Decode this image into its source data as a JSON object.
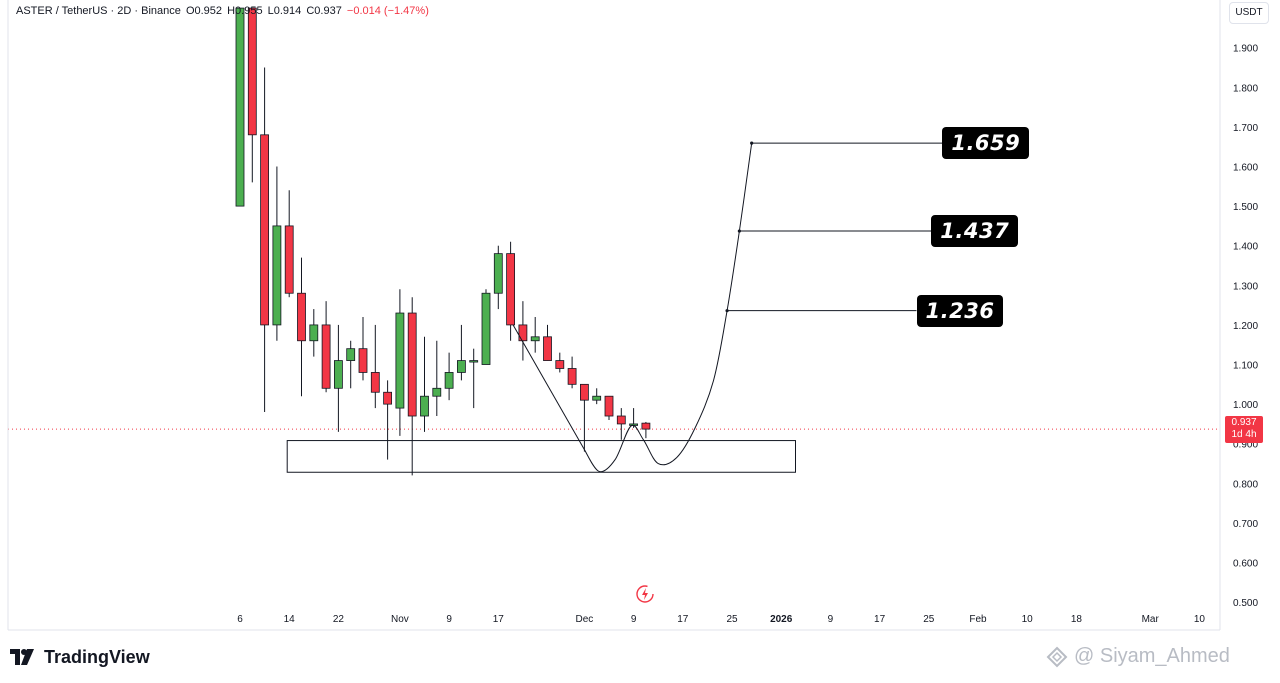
{
  "legend": {
    "symbol": "ASTER / TetherUS · 2D · Binance",
    "open": "O0.952",
    "high": "H0.955",
    "low": "L0.914",
    "close": "C0.937",
    "change": "−0.014 (−1.47%)"
  },
  "currency": "USDT",
  "last_price": {
    "value": "0.937",
    "countdown": "1d 4h"
  },
  "brand": {
    "name": "TradingView"
  },
  "watermark": "@ Siyam_Ahmed",
  "colors": {
    "up": "#4caf50",
    "down": "#f23645",
    "text": "#131722",
    "grid_dot": "#f23645"
  },
  "chart_data": {
    "type": "candlestick",
    "y_ticks": [
      "1.900",
      "1.800",
      "1.700",
      "1.600",
      "1.500",
      "1.400",
      "1.300",
      "1.200",
      "1.100",
      "1.000",
      "0.900",
      "0.800",
      "0.700",
      "0.600",
      "0.500"
    ],
    "ylim": [
      0.46,
      1.98
    ],
    "x_ticks": [
      {
        "label": "6",
        "i": 0
      },
      {
        "label": "14",
        "i": 4
      },
      {
        "label": "22",
        "i": 8
      },
      {
        "label": "Nov",
        "i": 13
      },
      {
        "label": "9",
        "i": 17
      },
      {
        "label": "17",
        "i": 21
      },
      {
        "label": "Dec",
        "i": 28
      },
      {
        "label": "9",
        "i": 32
      },
      {
        "label": "17",
        "i": 36
      },
      {
        "label": "25",
        "i": 40
      },
      {
        "label": "2026",
        "i": 44,
        "bold": true
      },
      {
        "label": "9",
        "i": 48
      },
      {
        "label": "17",
        "i": 52
      },
      {
        "label": "25",
        "i": 56
      },
      {
        "label": "Feb",
        "i": 60
      },
      {
        "label": "10",
        "i": 64
      },
      {
        "label": "18",
        "i": 68
      },
      {
        "label": "Mar",
        "i": 74
      },
      {
        "label": "10",
        "i": 78
      }
    ],
    "candles": [
      {
        "o": 1.5,
        "h": 2.0,
        "l": 1.5,
        "c": 2.0
      },
      {
        "o": 2.0,
        "h": 2.0,
        "l": 1.56,
        "c": 1.68
      },
      {
        "o": 1.68,
        "h": 1.85,
        "l": 0.98,
        "c": 1.2
      },
      {
        "o": 1.2,
        "h": 1.6,
        "l": 1.16,
        "c": 1.45
      },
      {
        "o": 1.45,
        "h": 1.54,
        "l": 1.27,
        "c": 1.28
      },
      {
        "o": 1.28,
        "h": 1.37,
        "l": 1.02,
        "c": 1.16
      },
      {
        "o": 1.16,
        "h": 1.24,
        "l": 1.12,
        "c": 1.2
      },
      {
        "o": 1.2,
        "h": 1.26,
        "l": 1.03,
        "c": 1.04
      },
      {
        "o": 1.04,
        "h": 1.2,
        "l": 0.93,
        "c": 1.11
      },
      {
        "o": 1.11,
        "h": 1.16,
        "l": 1.04,
        "c": 1.14
      },
      {
        "o": 1.14,
        "h": 1.22,
        "l": 1.06,
        "c": 1.08
      },
      {
        "o": 1.08,
        "h": 1.2,
        "l": 0.99,
        "c": 1.03
      },
      {
        "o": 1.03,
        "h": 1.06,
        "l": 0.86,
        "c": 1.0
      },
      {
        "o": 0.99,
        "h": 1.29,
        "l": 0.92,
        "c": 1.23
      },
      {
        "o": 1.23,
        "h": 1.27,
        "l": 0.82,
        "c": 0.97
      },
      {
        "o": 0.97,
        "h": 1.17,
        "l": 0.93,
        "c": 1.02
      },
      {
        "o": 1.02,
        "h": 1.16,
        "l": 0.97,
        "c": 1.04
      },
      {
        "o": 1.04,
        "h": 1.13,
        "l": 1.01,
        "c": 1.08
      },
      {
        "o": 1.08,
        "h": 1.2,
        "l": 1.06,
        "c": 1.11
      },
      {
        "o": 1.11,
        "h": 1.14,
        "l": 0.99,
        "c": 1.11
      },
      {
        "o": 1.1,
        "h": 1.29,
        "l": 1.1,
        "c": 1.28
      },
      {
        "o": 1.28,
        "h": 1.4,
        "l": 1.24,
        "c": 1.38
      },
      {
        "o": 1.38,
        "h": 1.41,
        "l": 1.16,
        "c": 1.2
      },
      {
        "o": 1.2,
        "h": 1.26,
        "l": 1.11,
        "c": 1.16
      },
      {
        "o": 1.16,
        "h": 1.22,
        "l": 1.13,
        "c": 1.17
      },
      {
        "o": 1.17,
        "h": 1.2,
        "l": 1.11,
        "c": 1.11
      },
      {
        "o": 1.11,
        "h": 1.13,
        "l": 1.08,
        "c": 1.09
      },
      {
        "o": 1.09,
        "h": 1.12,
        "l": 1.04,
        "c": 1.05
      },
      {
        "o": 1.05,
        "h": 1.05,
        "l": 0.88,
        "c": 1.01
      },
      {
        "o": 1.01,
        "h": 1.04,
        "l": 1.0,
        "c": 1.02
      },
      {
        "o": 1.02,
        "h": 1.02,
        "l": 0.96,
        "c": 0.97
      },
      {
        "o": 0.97,
        "h": 0.99,
        "l": 0.91,
        "c": 0.95
      },
      {
        "o": 0.95,
        "h": 0.99,
        "l": 0.94,
        "c": 0.95
      },
      {
        "o": 0.952,
        "h": 0.955,
        "l": 0.914,
        "c": 0.937
      }
    ],
    "support_zone": {
      "i0": 4,
      "i1": 45,
      "low": 0.828,
      "high": 0.908
    },
    "current_price": 0.937,
    "curve": [
      {
        "i": 28.0,
        "p": 0.885
      },
      {
        "i": 29.2,
        "p": 0.83
      },
      {
        "i": 30.5,
        "p": 0.86
      },
      {
        "i": 31.8,
        "p": 0.945
      },
      {
        "i": 32.8,
        "p": 0.91
      },
      {
        "i": 34.0,
        "p": 0.85
      },
      {
        "i": 35.5,
        "p": 0.865
      },
      {
        "i": 37.0,
        "p": 0.94
      },
      {
        "i": 38.5,
        "p": 1.06
      },
      {
        "i": 39.6,
        "p": 1.236
      },
      {
        "i": 40.6,
        "p": 1.437
      },
      {
        "i": 41.6,
        "p": 1.659
      }
    ],
    "targets": [
      {
        "label": "1.236",
        "price": 1.236,
        "start_i": 39.6,
        "end_i": 55.0
      },
      {
        "label": "1.437",
        "price": 1.437,
        "start_i": 40.6,
        "end_i": 56.2
      },
      {
        "label": "1.659",
        "price": 1.659,
        "start_i": 41.6,
        "end_i": 57.1
      }
    ]
  }
}
